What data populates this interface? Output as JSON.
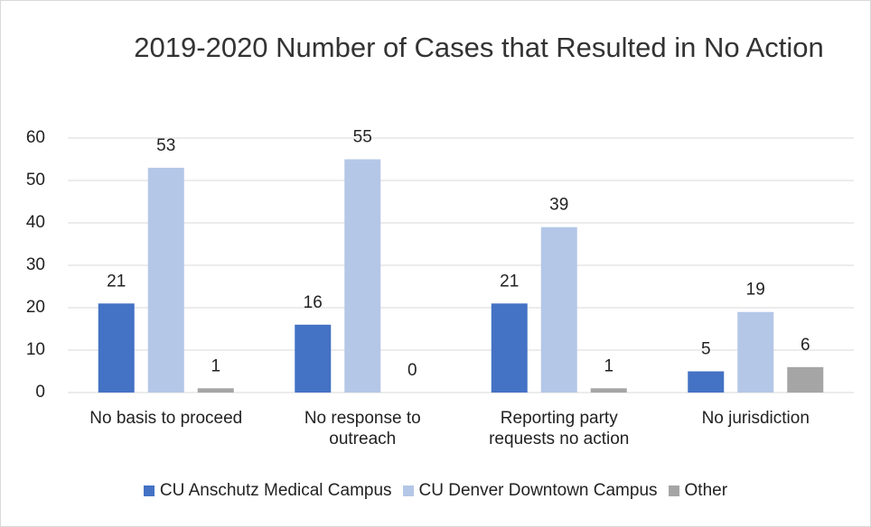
{
  "chart_data": {
    "type": "bar",
    "title": "2019-2020 Number of Cases that Resulted in No Action",
    "categories": [
      "No basis to proceed",
      "No response to outreach",
      "Reporting party requests no action",
      "No jurisdiction"
    ],
    "series": [
      {
        "name": "CU Anschutz Medical Campus",
        "color": "#4472c4",
        "values": [
          21,
          16,
          21,
          5
        ]
      },
      {
        "name": "CU Denver Downtown Campus",
        "color": "#b4c7e7",
        "values": [
          53,
          55,
          39,
          19
        ]
      },
      {
        "name": "Other",
        "color": "#a5a5a5",
        "values": [
          1,
          0,
          1,
          6
        ]
      }
    ],
    "ylim": [
      0,
      60
    ],
    "yticks": [
      0,
      10,
      20,
      30,
      40,
      50,
      60
    ],
    "grid": true,
    "legend": "bottom"
  }
}
